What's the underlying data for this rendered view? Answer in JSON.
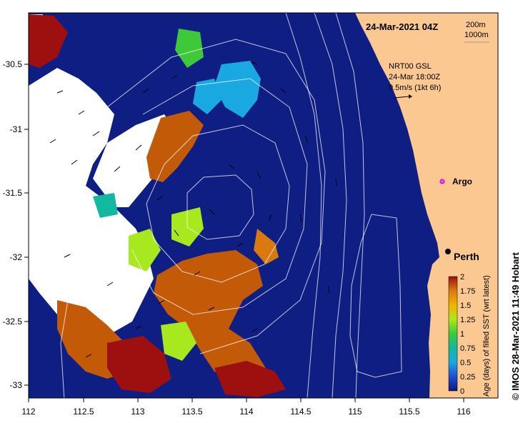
{
  "map": {
    "date_label": "24-Mar-2021 04Z",
    "isobath_labels": [
      "200m",
      "1000m"
    ],
    "current_source": "NRT00 GSL",
    "current_time": "24-Mar 18:00Z",
    "current_scale": "0.5m/s (1kt 6h)",
    "argo_label": "Argo",
    "city_label": "Perth",
    "credit": "© IMOS 28-Mar-2021 11:49 Hobart",
    "colors": {
      "land": "#fbc891",
      "ocean_deep": "#0f1e82",
      "age_0": "#0f1e82",
      "age_high": "#b85a0a",
      "age_max": "#9e0f0f"
    },
    "x_ticks": [
      "112",
      "112.5",
      "113",
      "113.5",
      "114",
      "114.5",
      "115",
      "115.5",
      "116"
    ],
    "y_ticks": [
      "-30.5",
      "-31",
      "-31.5",
      "-32",
      "-32.5",
      "-33"
    ]
  },
  "colorbar": {
    "title": "Age (days) of filled SST (wrt latest)",
    "ticks": [
      "0",
      "0.25",
      "0.5",
      "0.75",
      "1",
      "1.25",
      "1.5",
      "1.75",
      "2"
    ],
    "stops": [
      "#0a1a7a",
      "#1f4fcf",
      "#19a8e0",
      "#12b8a0",
      "#3ec83a",
      "#a8e81e",
      "#f0b400",
      "#d97a10",
      "#9e0f0f"
    ]
  }
}
